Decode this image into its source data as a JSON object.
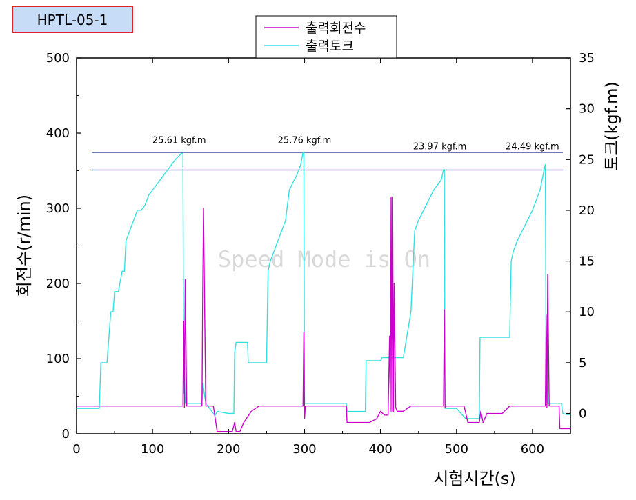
{
  "chart_data": {
    "type": "line",
    "title_badge": "HPTL-05-1",
    "watermark": "Speed Mode is On",
    "xlabel": "시험시간(s)",
    "ylabel_left": "회전수(r/min)",
    "ylabel_right": "토크(kgf.m)",
    "xlim": [
      0,
      650
    ],
    "ylim_left": [
      0,
      500
    ],
    "ylim_right": [
      -2,
      35
    ],
    "x_ticks": [
      0,
      100,
      200,
      300,
      400,
      500,
      600
    ],
    "y_left_ticks": [
      0,
      100,
      200,
      300,
      400,
      500
    ],
    "y_right_ticks": [
      0,
      5,
      10,
      15,
      20,
      25,
      30,
      35
    ],
    "grid": false,
    "legend_position": "top-center",
    "colors": {
      "speed": "#cc00cc",
      "torque": "#33e0e0",
      "reference": "#1a2a8c",
      "badge_border": "#e0202a",
      "badge_fill": "#c7dcf7"
    },
    "series": [
      {
        "name": "출력회전수",
        "axis": "left",
        "x": [
          0,
          40,
          130,
          138,
          140,
          141,
          142,
          143,
          145,
          146,
          155,
          160,
          165,
          166,
          167,
          170,
          180,
          185,
          200,
          205,
          208,
          210,
          215,
          220,
          230,
          240,
          250,
          290,
          298,
          299,
          300,
          301,
          305,
          330,
          355,
          356,
          380,
          385,
          395,
          400,
          405,
          410,
          412,
          413,
          414,
          415,
          416,
          417,
          418,
          420,
          422,
          425,
          430,
          440,
          450,
          480,
          483,
          484,
          485,
          486,
          490,
          510,
          515,
          520,
          530,
          532,
          535,
          540,
          560,
          570,
          612,
          617,
          618,
          619,
          620,
          622,
          625,
          635,
          636,
          645,
          650
        ],
        "values": [
          37,
          37,
          37,
          37,
          37,
          150,
          35,
          205,
          37,
          37,
          37,
          37,
          37,
          190,
          300,
          37,
          37,
          3,
          3,
          3,
          15,
          3,
          3,
          15,
          30,
          37,
          37,
          37,
          37,
          135,
          20,
          37,
          37,
          37,
          37,
          15,
          15,
          15,
          20,
          30,
          25,
          25,
          130,
          30,
          315,
          30,
          315,
          30,
          200,
          35,
          30,
          30,
          30,
          37,
          37,
          37,
          37,
          165,
          35,
          37,
          37,
          37,
          15,
          15,
          15,
          30,
          15,
          27,
          27,
          37,
          37,
          37,
          158,
          35,
          212,
          37,
          37,
          37,
          7,
          7,
          7
        ]
      },
      {
        "name": "출력토크",
        "axis": "right",
        "x": [
          0,
          30,
          32,
          40,
          45,
          48,
          50,
          55,
          60,
          63,
          65,
          70,
          75,
          80,
          85,
          90,
          95,
          100,
          110,
          120,
          130,
          138,
          140,
          141,
          142,
          143,
          150,
          160,
          165,
          166,
          170,
          182,
          185,
          200,
          207,
          208,
          210,
          220,
          225,
          226,
          230,
          240,
          250,
          252,
          255,
          260,
          265,
          270,
          275,
          280,
          290,
          295,
          298,
          299,
          300,
          310,
          330,
          355,
          356,
          360,
          370,
          380,
          381,
          400,
          402,
          410,
          415,
          420,
          425,
          430,
          440,
          445,
          450,
          460,
          470,
          480,
          483,
          484,
          485,
          486,
          500,
          512,
          515,
          520,
          530,
          531,
          540,
          560,
          570,
          572,
          575,
          580,
          590,
          600,
          610,
          616,
          617,
          618,
          619,
          620,
          625,
          635,
          638,
          640,
          645,
          650
        ],
        "values": [
          0.5,
          0.5,
          5,
          5,
          10,
          10,
          12,
          12,
          14,
          14,
          17,
          18,
          19,
          20,
          20,
          20.5,
          21.5,
          22,
          23,
          24,
          25,
          25.6,
          25.6,
          2,
          3.5,
          1,
          1,
          1,
          1,
          3,
          1,
          -0.2,
          0.2,
          0,
          0,
          6,
          7,
          7,
          7,
          5,
          5,
          5,
          5,
          14,
          15,
          16,
          17,
          18,
          19,
          22,
          23.5,
          24.5,
          25.7,
          25.7,
          1,
          1,
          1,
          1,
          0.2,
          0.2,
          0.2,
          0.2,
          5.2,
          5.2,
          5.5,
          5.5,
          5.5,
          5.5,
          5.5,
          5.5,
          10,
          18,
          19,
          20.5,
          22,
          23,
          24,
          24,
          0.5,
          0.5,
          0.5,
          -0.5,
          -0.5,
          -0.5,
          -0.5,
          7.5,
          7.5,
          7.5,
          7.5,
          15,
          16,
          17,
          18.5,
          20,
          22,
          24.2,
          24.5,
          2,
          3.5,
          1,
          1,
          1,
          1,
          0,
          -0.1,
          -0.1
        ]
      }
    ],
    "reference_lines": [
      {
        "axis": "right",
        "value": 25.7,
        "x_range": [
          20,
          640
        ]
      },
      {
        "axis": "right",
        "value": 23.97,
        "x_range": [
          18,
          642
        ]
      }
    ],
    "annotations": [
      {
        "text": "25.61 kgf.m",
        "x": 135,
        "y": 26.6
      },
      {
        "text": "25.76 kgf.m",
        "x": 300,
        "y": 26.6
      },
      {
        "text": "23.97 kgf.m",
        "x": 478,
        "y": 26.0
      },
      {
        "text": "24.49 kgf.m",
        "x": 600,
        "y": 26.0
      }
    ]
  }
}
